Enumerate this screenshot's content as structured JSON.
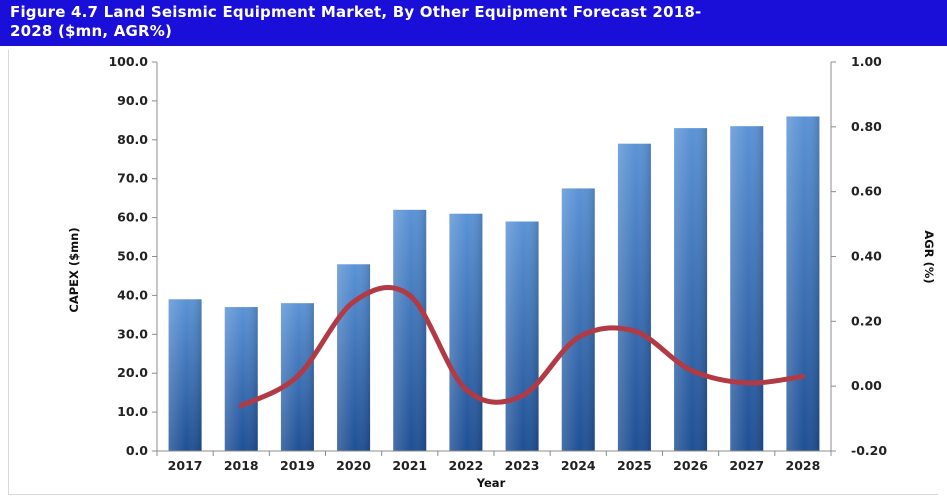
{
  "title": "Figure 4.7 Land Seismic Equipment Market, By Other Equipment Forecast 2018-2028 ($mn, AGR%)",
  "title_line1": "Figure 4.7 Land Seismic Equipment Market, By Other Equipment Forecast 2018-",
  "title_line2": "2028 ($mn, AGR%)",
  "colors": {
    "title_bg": "#1a0fd8",
    "bar_top": "#5b93d6",
    "bar_bottom": "#1f4f94",
    "line": "#b23a45"
  },
  "chart_data": {
    "type": "bar",
    "categories": [
      "2017",
      "2018",
      "2019",
      "2020",
      "2021",
      "2022",
      "2023",
      "2024",
      "2025",
      "2026",
      "2027",
      "2028"
    ],
    "xlabel": "Year",
    "ylabel": "CAPEX ($mn)",
    "y2label": "AGR (%)",
    "ylim": [
      0,
      100
    ],
    "y_ticks": [
      "0.0",
      "10.0",
      "20.0",
      "30.0",
      "40.0",
      "50.0",
      "60.0",
      "70.0",
      "80.0",
      "90.0",
      "100.0"
    ],
    "y2lim": [
      -0.2,
      1.0
    ],
    "y2_ticks": [
      "-0.20",
      "0.00",
      "0.20",
      "0.40",
      "0.60",
      "0.80",
      "1.00"
    ],
    "series": [
      {
        "type": "bar",
        "axis": "left",
        "values": [
          39.0,
          37.0,
          38.0,
          48.0,
          62.0,
          61.0,
          59.0,
          67.5,
          79.0,
          83.0,
          83.5,
          86.0
        ]
      },
      {
        "type": "line",
        "axis": "right",
        "values": [
          null,
          -0.06,
          0.03,
          0.26,
          0.28,
          -0.01,
          -0.03,
          0.15,
          0.17,
          0.05,
          0.01,
          0.03
        ]
      }
    ],
    "grid": false,
    "legend": "none"
  }
}
